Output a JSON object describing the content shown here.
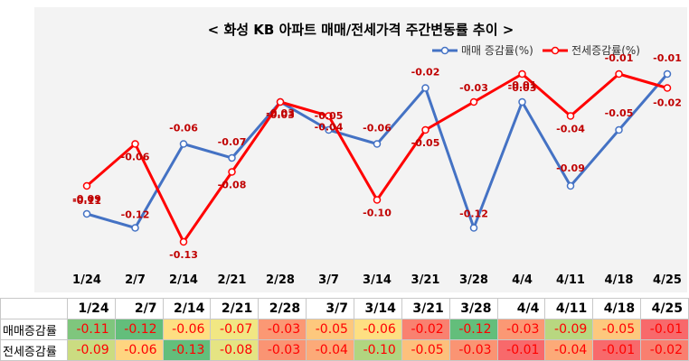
{
  "chart_data": {
    "type": "line",
    "title": "< 화성 KB 아파트 매매/전세가격 주간변동률 추이 >",
    "categories": [
      "1/24",
      "2/7",
      "2/14",
      "2/21",
      "2/28",
      "3/7",
      "3/14",
      "3/21",
      "3/28",
      "4/4",
      "4/11",
      "4/18",
      "4/25"
    ],
    "series": [
      {
        "name": "매매 증감률(%)",
        "color": "#4472c4",
        "values": [
          -0.11,
          -0.12,
          -0.06,
          -0.07,
          -0.03,
          -0.05,
          -0.06,
          -0.02,
          -0.12,
          -0.03,
          -0.09,
          -0.05,
          -0.01
        ]
      },
      {
        "name": "전세증감률(%)",
        "color": "#ff0000",
        "values": [
          -0.09,
          -0.06,
          -0.13,
          -0.08,
          -0.03,
          -0.04,
          -0.1,
          -0.05,
          -0.03,
          -0.01,
          -0.04,
          -0.01,
          -0.02
        ]
      }
    ],
    "legend": "top-right",
    "grid": false
  },
  "table": {
    "row_labels": [
      "매매증감률",
      "전세증감률"
    ]
  },
  "colors": {
    "blue_series": "#4472c4",
    "red_series": "#ff0000",
    "marker_fill": "#ffffff"
  }
}
